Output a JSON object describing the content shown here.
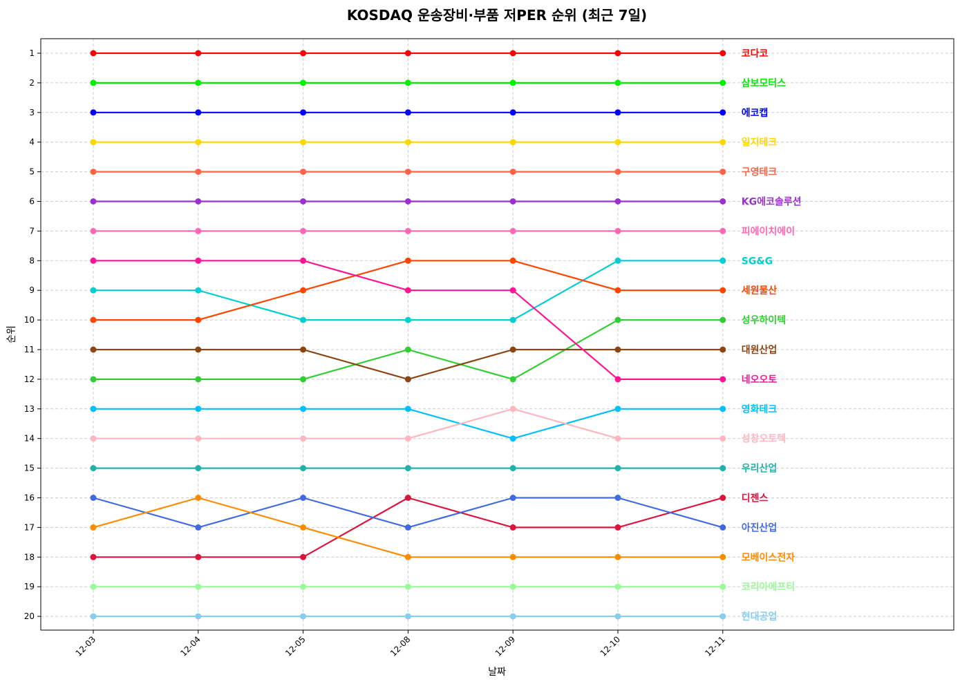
{
  "chart_data": {
    "type": "line",
    "title": "KOSDAQ 운송장비·부품 저PER 순위 (최근 7일)",
    "xlabel": "날짜",
    "ylabel": "순위",
    "categories": [
      "12-03",
      "12-04",
      "12-05",
      "12-08",
      "12-09",
      "12-10",
      "12-11"
    ],
    "y_ticks": [
      1,
      2,
      3,
      4,
      5,
      6,
      7,
      8,
      9,
      10,
      11,
      12,
      13,
      14,
      15,
      16,
      17,
      18,
      19,
      20
    ],
    "ylim": [
      20.5,
      0.5
    ],
    "y_inverted": true,
    "grid": true,
    "legend": "labels at line ends (right)",
    "series": [
      {
        "name": "코다코",
        "color": "#ff0000",
        "values": [
          1,
          1,
          1,
          1,
          1,
          1,
          1
        ]
      },
      {
        "name": "삼보모터스",
        "color": "#00ee00",
        "values": [
          2,
          2,
          2,
          2,
          2,
          2,
          2
        ]
      },
      {
        "name": "에코캡",
        "color": "#0000ff",
        "values": [
          3,
          3,
          3,
          3,
          3,
          3,
          3
        ]
      },
      {
        "name": "일지테크",
        "color": "#ffd700",
        "values": [
          4,
          4,
          4,
          4,
          4,
          4,
          4
        ]
      },
      {
        "name": "구영테크",
        "color": "#ff6347",
        "values": [
          5,
          5,
          5,
          5,
          5,
          5,
          5
        ]
      },
      {
        "name": "KG에코솔루션",
        "color": "#9932cc",
        "values": [
          6,
          6,
          6,
          6,
          6,
          6,
          6
        ]
      },
      {
        "name": "피에이치에이",
        "color": "#ff69b4",
        "values": [
          7,
          7,
          7,
          7,
          7,
          7,
          7
        ]
      },
      {
        "name": "SG&G",
        "color": "#00ced1",
        "values": [
          9,
          9,
          10,
          10,
          10,
          8,
          8
        ]
      },
      {
        "name": "세원물산",
        "color": "#ff4500",
        "values": [
          10,
          10,
          9,
          8,
          8,
          9,
          9
        ]
      },
      {
        "name": "성우하이텍",
        "color": "#32cd32",
        "values": [
          12,
          12,
          12,
          11,
          12,
          10,
          10
        ]
      },
      {
        "name": "대원산업",
        "color": "#8b4513",
        "values": [
          11,
          11,
          11,
          12,
          11,
          11,
          11
        ]
      },
      {
        "name": "네오오토",
        "color": "#ff1493",
        "values": [
          8,
          8,
          8,
          9,
          9,
          12,
          12
        ]
      },
      {
        "name": "영화테크",
        "color": "#00bfff",
        "values": [
          13,
          13,
          13,
          13,
          14,
          13,
          13
        ]
      },
      {
        "name": "성창오토텍",
        "color": "#ffb6c1",
        "values": [
          14,
          14,
          14,
          14,
          13,
          14,
          14
        ]
      },
      {
        "name": "우리산업",
        "color": "#20b2aa",
        "values": [
          15,
          15,
          15,
          15,
          15,
          15,
          15
        ]
      },
      {
        "name": "디젠스",
        "color": "#dc143c",
        "values": [
          18,
          18,
          18,
          16,
          17,
          17,
          16
        ]
      },
      {
        "name": "아진산업",
        "color": "#4169e1",
        "values": [
          16,
          17,
          16,
          17,
          16,
          16,
          17
        ]
      },
      {
        "name": "모베이스전자",
        "color": "#ff8c00",
        "values": [
          17,
          16,
          17,
          18,
          18,
          18,
          18
        ]
      },
      {
        "name": "코리아에프티",
        "color": "#98fb98",
        "values": [
          19,
          19,
          19,
          19,
          19,
          19,
          19
        ]
      },
      {
        "name": "현대공업",
        "color": "#87ceeb",
        "values": [
          20,
          20,
          20,
          20,
          20,
          20,
          20
        ]
      }
    ]
  }
}
